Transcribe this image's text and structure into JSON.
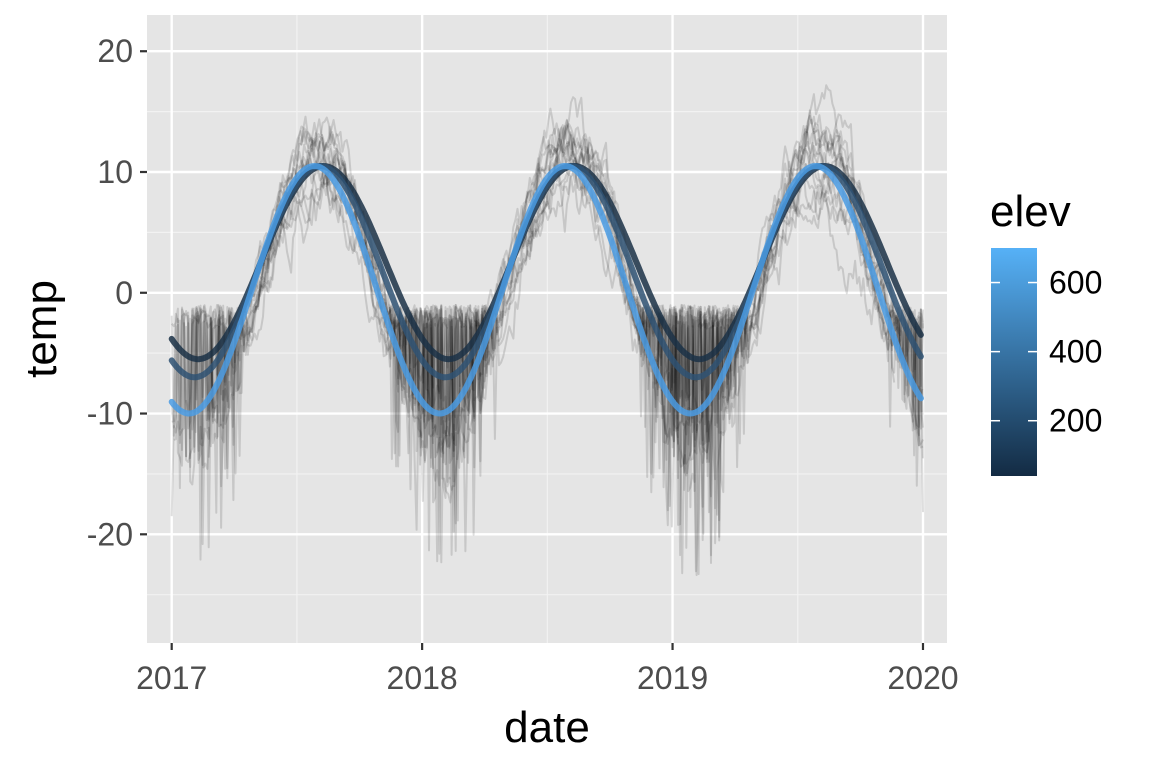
{
  "chart_data": {
    "type": "line",
    "title": "",
    "xlabel": "date",
    "ylabel": "temp",
    "x_axis": {
      "type": "date",
      "range": [
        "2016-11-26",
        "2020-02-05"
      ],
      "ticks": [
        "2017-01-01",
        "2018-01-01",
        "2019-01-01",
        "2020-01-01"
      ],
      "tick_labels": [
        "2017",
        "2018",
        "2019",
        "2020"
      ]
    },
    "y_axis": {
      "range": [
        -29,
        23
      ],
      "ticks": [
        -20,
        -10,
        0,
        10,
        20
      ],
      "tick_labels": [
        "-20",
        "-10",
        "0",
        "10",
        "20"
      ]
    },
    "grid": true,
    "panel_background": "#e5e5e5",
    "legend": {
      "title": "elev",
      "placement": "right",
      "type": "colorbar",
      "range": [
        40,
        700
      ],
      "ticks": [
        200,
        400,
        600
      ],
      "tick_labels": [
        "200",
        "400",
        "600"
      ],
      "low_color": "#132b43",
      "high_color": "#56b1f7"
    },
    "fitted_series": [
      {
        "elev": 30,
        "mean": 2.5,
        "amplitude": 8.0,
        "peak_date": "2017-08-10",
        "color": "#1b3146"
      },
      {
        "elev": 300,
        "mean": 1.75,
        "amplitude": 8.75,
        "peak_date": "2017-08-05",
        "color": "#2f5273"
      },
      {
        "elev": 700,
        "mean": 0.25,
        "amplitude": 10.25,
        "peak_date": "2017-07-28",
        "color": "#4a9be3"
      }
    ],
    "station_series": {
      "count": 16,
      "color": "#000000",
      "description_pattern": "daily station temperature records, semi-transparent",
      "winter_min_typical": -15,
      "winter_min_extreme": -26,
      "summer_max_typical": 15,
      "summer_max_extreme": 20
    }
  }
}
